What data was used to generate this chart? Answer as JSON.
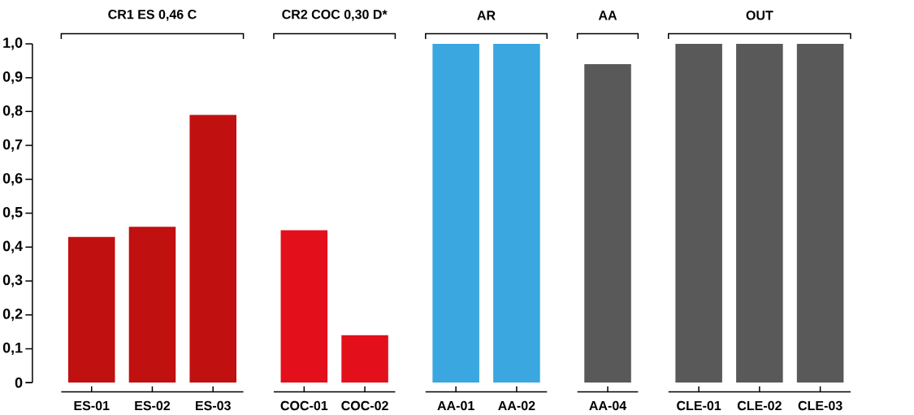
{
  "chart_data": {
    "type": "bar",
    "categories": [
      "ES-01",
      "ES-02",
      "ES-03",
      null,
      "COC-01",
      "COC-02",
      null,
      "AA-01",
      "AA-02",
      null,
      "AA-04",
      null,
      "CLE-01",
      "CLE-02",
      "CLE-03"
    ],
    "values": [
      0.43,
      0.46,
      0.79,
      null,
      0.45,
      0.14,
      null,
      1.0,
      1.0,
      null,
      0.94,
      null,
      1.0,
      1.0,
      1.0
    ],
    "colors": [
      "#c0100f",
      "#c0100f",
      "#c0100f",
      null,
      "#e30f1b",
      "#e30f1b",
      null,
      "#3aa7e0",
      "#3aa7e0",
      null,
      "#595959",
      null,
      "#595959",
      "#595959",
      "#595959"
    ],
    "ylim": [
      0,
      1.0
    ],
    "yticks": [
      0,
      {
        "value": 0.1,
        "label": "0,1"
      },
      {
        "value": 0.2,
        "label": "0,2"
      },
      {
        "value": 0.3,
        "label": "0,3"
      },
      {
        "value": 0.4,
        "label": "0,4"
      },
      {
        "value": 0.5,
        "label": "0,5"
      },
      {
        "value": 0.6,
        "label": "0,6"
      },
      {
        "value": 0.7,
        "label": "0,7"
      },
      {
        "value": 0.8,
        "label": "0,8"
      },
      {
        "value": 0.9,
        "label": "0,9"
      },
      {
        "value": 1.0,
        "label": "1,0"
      }
    ],
    "annotations": [
      "CR1 ES 0,46 C",
      "CR2 COC 0,30 D*",
      "AR",
      "AA",
      "OUT"
    ]
  }
}
